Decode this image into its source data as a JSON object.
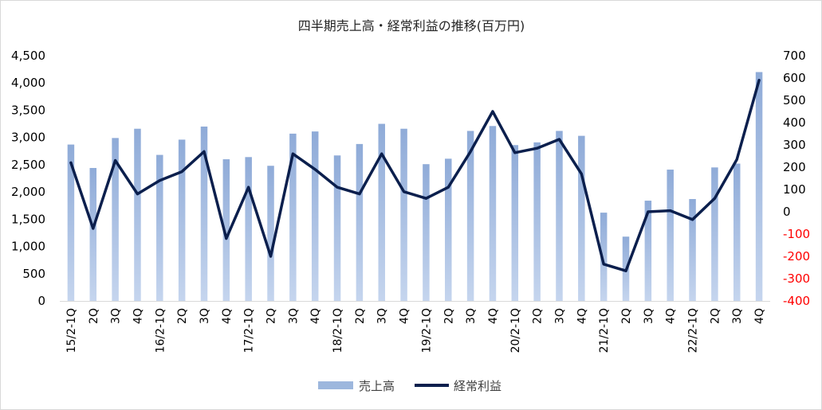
{
  "chart_data": {
    "type": "bar",
    "title": "四半期売上高・経常利益の推移(百万円)",
    "categories": [
      "15/2-1Q",
      "2Q",
      "3Q",
      "4Q",
      "16/2-1Q",
      "2Q",
      "3Q",
      "4Q",
      "17/2-1Q",
      "2Q",
      "3Q",
      "4Q",
      "18/2-1Q",
      "2Q",
      "3Q",
      "4Q",
      "19/2-1Q",
      "2Q",
      "3Q",
      "4Q",
      "20/2-1Q",
      "2Q",
      "3Q",
      "4Q",
      "21/2-1Q",
      "2Q",
      "3Q",
      "4Q",
      "22/2-1Q",
      "2Q",
      "3Q",
      "4Q"
    ],
    "series": [
      {
        "name": "売上高",
        "type": "bar",
        "axis": "left",
        "color": "#9db7dd",
        "values": [
          2870,
          2440,
          2990,
          3160,
          2680,
          2960,
          3200,
          2600,
          2640,
          2480,
          3070,
          3110,
          2670,
          2880,
          3250,
          3160,
          2510,
          2610,
          3120,
          3210,
          2860,
          2910,
          3120,
          3030,
          1620,
          1180,
          1840,
          2410,
          1870,
          2450,
          2520,
          4200
        ]
      },
      {
        "name": "経常利益",
        "type": "line",
        "axis": "right",
        "color": "#0b1f4d",
        "values": [
          220,
          -75,
          230,
          80,
          140,
          180,
          270,
          -120,
          110,
          -200,
          260,
          190,
          110,
          80,
          260,
          90,
          60,
          110,
          270,
          450,
          265,
          285,
          325,
          170,
          -235,
          -265,
          0,
          5,
          -35,
          60,
          235,
          590
        ]
      }
    ],
    "left_axis": {
      "min": 0,
      "max": 4500,
      "step": 500,
      "ticks": [
        "0",
        "500",
        "1,000",
        "1,500",
        "2,000",
        "2,500",
        "3,000",
        "3,500",
        "4,000",
        "4,500"
      ]
    },
    "right_axis": {
      "min": -400,
      "max": 700,
      "step": 100,
      "ticks": [
        "-400",
        "-300",
        "-200",
        "-100",
        "0",
        "100",
        "200",
        "300",
        "400",
        "500",
        "600",
        "700"
      ],
      "negative_color": "#ff0000"
    },
    "legend": {
      "position": "bottom",
      "items": [
        "売上高",
        "経常利益"
      ]
    },
    "grid": false
  }
}
